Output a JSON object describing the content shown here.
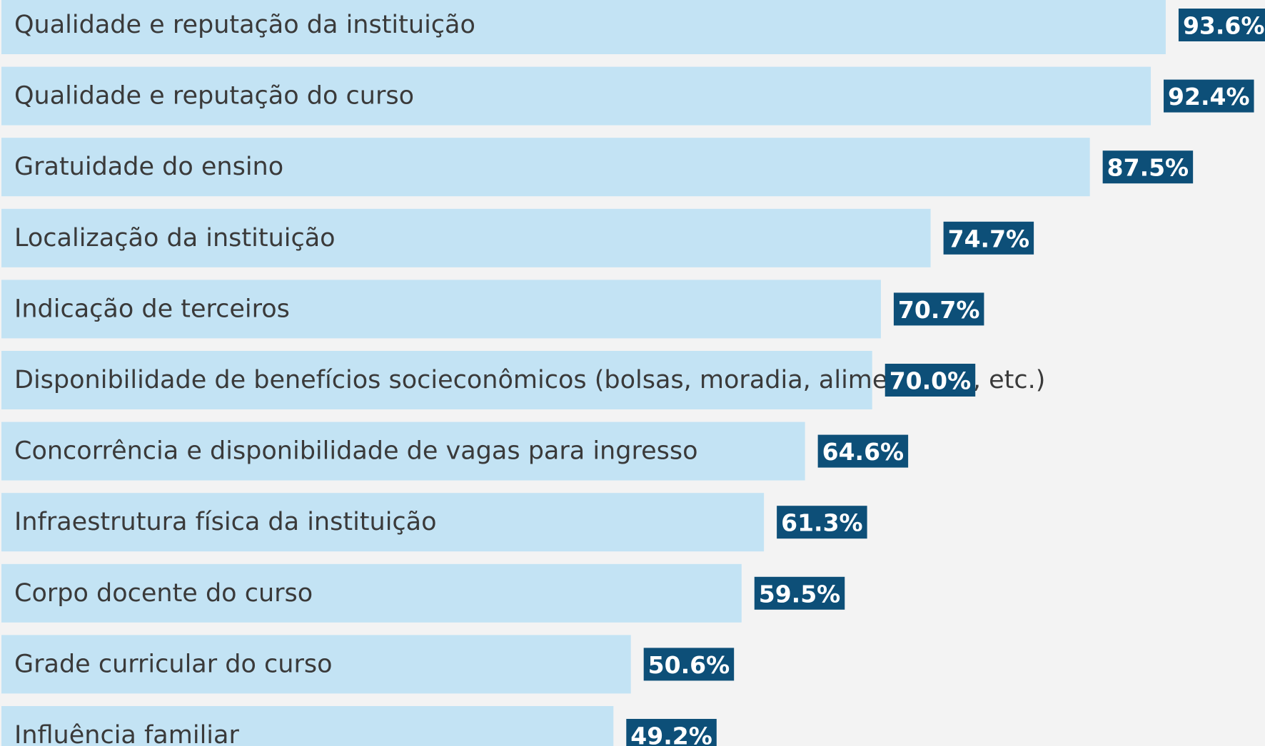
{
  "chart_data": {
    "type": "bar",
    "orientation": "horizontal",
    "color": "#c3e3f4",
    "label_color": "#0d4f78",
    "categories": [
      "Qualidade e reputação da instituição",
      "Qualidade e reputação do curso",
      "Gratuidade do ensino",
      "Localização da instituição",
      "Indicação de terceiros",
      "Disponibilidade de benefícios socieconômicos (bolsas, moradia, alimentação, etc.)",
      "Concorrência e disponibilidade de vagas para ingresso",
      "Infraestrutura física da instituição",
      "Corpo docente do curso",
      "Grade curricular do curso",
      "Influência familiar"
    ],
    "values": [
      93.6,
      92.4,
      87.5,
      74.7,
      70.7,
      70.0,
      64.6,
      61.3,
      59.5,
      50.6,
      49.2
    ],
    "value_labels": [
      "93.6%",
      "92.4%",
      "87.5%",
      "74.7%",
      "70.7%",
      "70.0%",
      "64.6%",
      "61.3%",
      "59.5%",
      "50.6%",
      "49.2%"
    ]
  }
}
